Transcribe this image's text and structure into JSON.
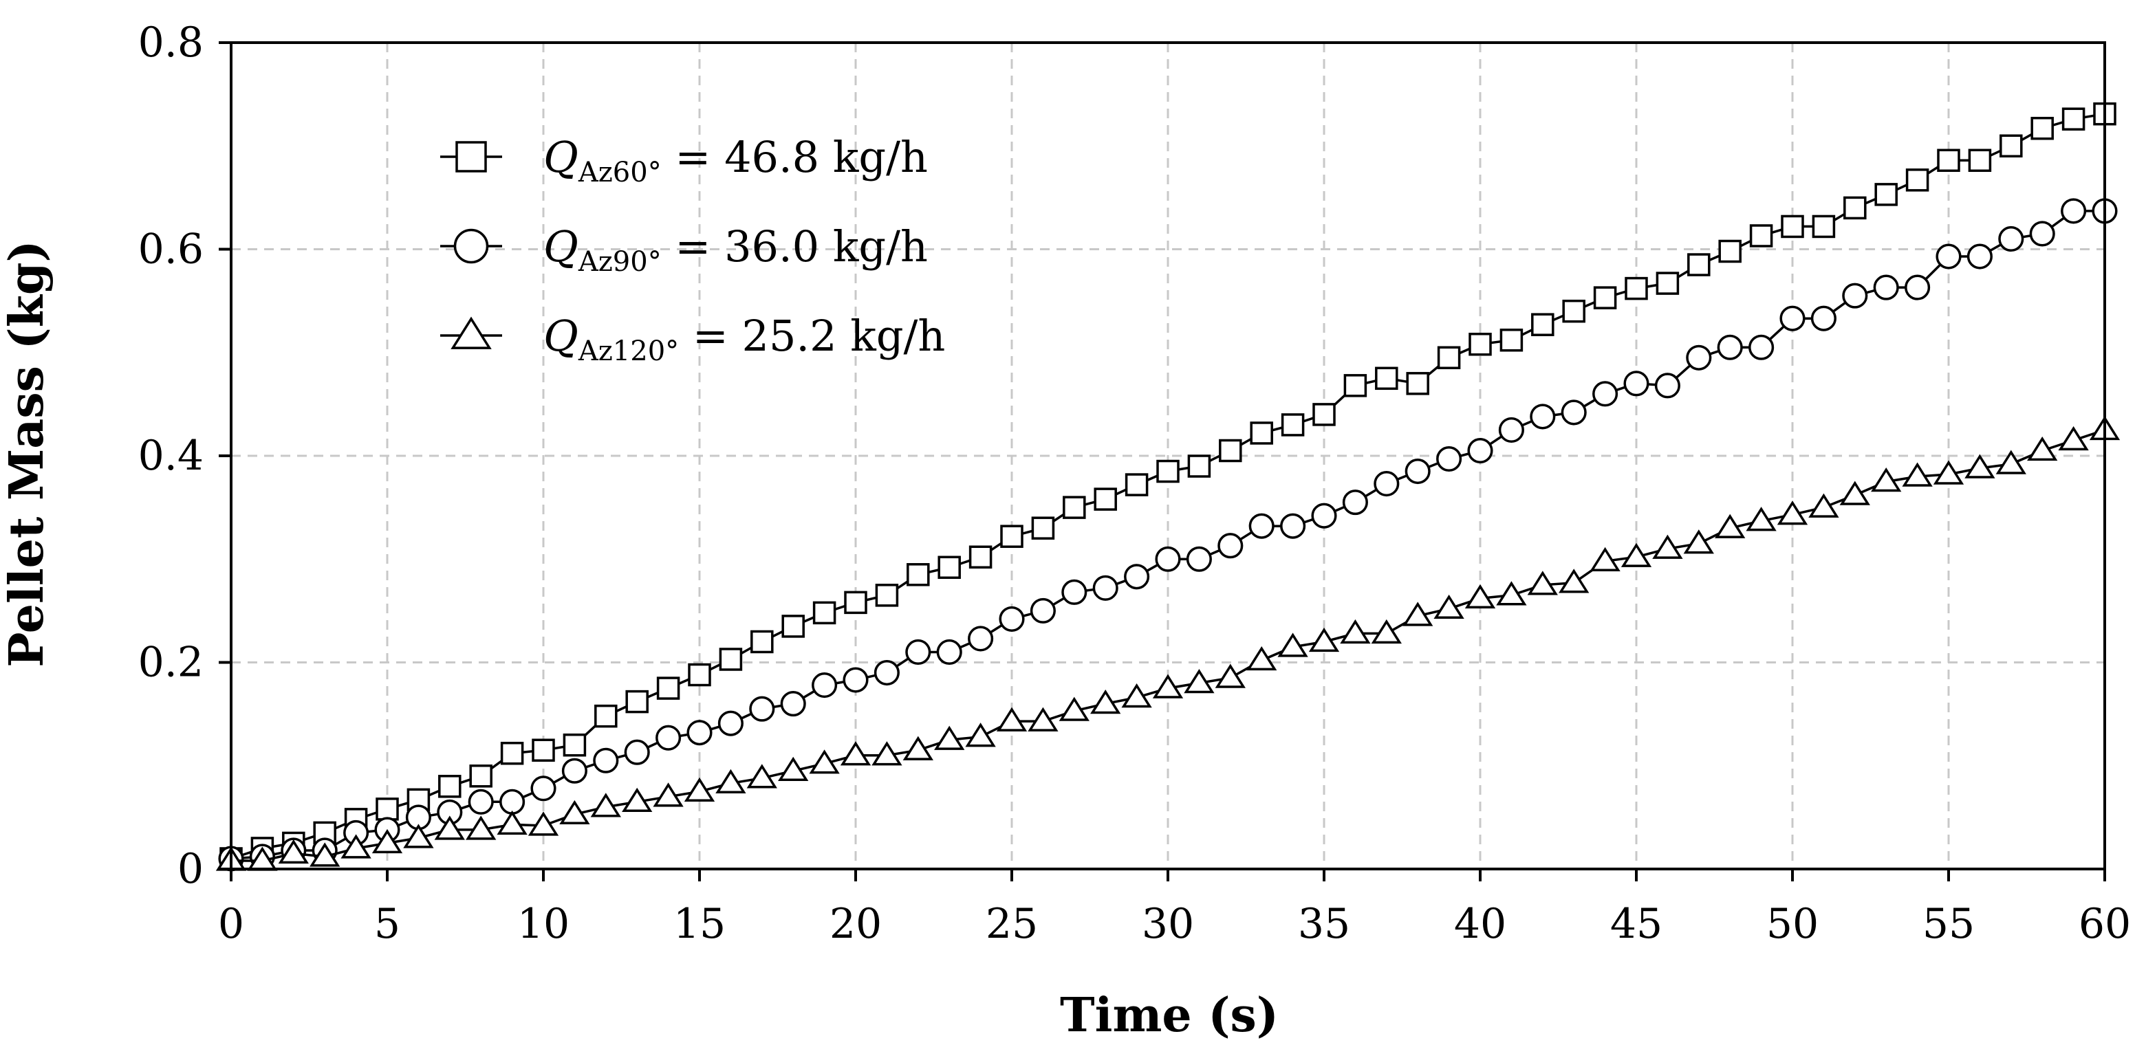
{
  "chart_data": {
    "type": "line",
    "title": "",
    "xlabel": "Time (s)",
    "ylabel": "Pellet Mass (kg)",
    "xlim": [
      0,
      60
    ],
    "ylim": [
      0,
      0.8
    ],
    "xticks": [
      "0",
      "5",
      "10",
      "15",
      "20",
      "25",
      "30",
      "35",
      "40",
      "45",
      "50",
      "55",
      "60"
    ],
    "yticks": [
      "0",
      "0.2",
      "0.4",
      "0.6",
      "0.8"
    ],
    "grid": true,
    "legend_position": "top-left",
    "series": [
      {
        "name": "Q_Az60° = 46.8 kg/h",
        "legend": {
          "q": "Q",
          "sub": "Az60°",
          "rest": " = 46.8 kg/h"
        },
        "marker": "square",
        "x": [
          0,
          1,
          2,
          3,
          4,
          5,
          6,
          7,
          8,
          9,
          10,
          11,
          12,
          13,
          14,
          15,
          16,
          17,
          18,
          19,
          20,
          21,
          22,
          23,
          24,
          25,
          26,
          27,
          28,
          29,
          30,
          31,
          32,
          33,
          34,
          35,
          36,
          37,
          38,
          39,
          40,
          41,
          42,
          43,
          44,
          45,
          46,
          47,
          48,
          49,
          50,
          51,
          52,
          53,
          54,
          55,
          56,
          57,
          58,
          59,
          60
        ],
        "values": [
          0.01,
          0.02,
          0.025,
          0.035,
          0.048,
          0.058,
          0.067,
          0.08,
          0.09,
          0.112,
          0.115,
          0.12,
          0.148,
          0.162,
          0.175,
          0.188,
          0.203,
          0.22,
          0.235,
          0.248,
          0.258,
          0.265,
          0.285,
          0.292,
          0.302,
          0.322,
          0.33,
          0.35,
          0.358,
          0.372,
          0.385,
          0.39,
          0.405,
          0.422,
          0.43,
          0.44,
          0.468,
          0.475,
          0.47,
          0.495,
          0.508,
          0.512,
          0.527,
          0.54,
          0.553,
          0.562,
          0.567,
          0.585,
          0.598,
          0.613,
          0.622,
          0.622,
          0.64,
          0.653,
          0.667,
          0.686,
          0.686,
          0.7,
          0.717,
          0.726,
          0.731
        ]
      },
      {
        "name": "Q_Az90° = 36.0 kg/h",
        "legend": {
          "q": "Q",
          "sub": "Az90°",
          "rest": " = 36.0 kg/h"
        },
        "marker": "circle",
        "x": [
          0,
          1,
          2,
          3,
          4,
          5,
          6,
          7,
          8,
          9,
          10,
          11,
          12,
          13,
          14,
          15,
          16,
          17,
          18,
          19,
          20,
          21,
          22,
          23,
          24,
          25,
          26,
          27,
          28,
          29,
          30,
          31,
          32,
          33,
          34,
          35,
          36,
          37,
          38,
          39,
          40,
          41,
          42,
          43,
          44,
          45,
          46,
          47,
          48,
          49,
          50,
          51,
          52,
          53,
          54,
          55,
          56,
          57,
          58,
          59,
          60
        ],
        "values": [
          0.01,
          0.012,
          0.018,
          0.018,
          0.035,
          0.038,
          0.05,
          0.055,
          0.065,
          0.065,
          0.078,
          0.095,
          0.105,
          0.113,
          0.127,
          0.132,
          0.141,
          0.155,
          0.16,
          0.178,
          0.183,
          0.19,
          0.21,
          0.21,
          0.223,
          0.242,
          0.25,
          0.268,
          0.272,
          0.283,
          0.3,
          0.3,
          0.313,
          0.332,
          0.332,
          0.342,
          0.355,
          0.373,
          0.385,
          0.397,
          0.405,
          0.425,
          0.438,
          0.442,
          0.46,
          0.47,
          0.468,
          0.495,
          0.505,
          0.505,
          0.533,
          0.533,
          0.555,
          0.563,
          0.563,
          0.593,
          0.593,
          0.61,
          0.615,
          0.637,
          0.637
        ]
      },
      {
        "name": "Q_Az120° = 25.2 kg/h",
        "legend": {
          "q": "Q",
          "sub": "Az120°",
          "rest": " = 25.2 kg/h"
        },
        "marker": "triangle",
        "x": [
          0,
          1,
          2,
          3,
          4,
          5,
          6,
          7,
          8,
          9,
          10,
          11,
          12,
          13,
          14,
          15,
          16,
          17,
          18,
          19,
          20,
          21,
          22,
          23,
          24,
          25,
          26,
          27,
          28,
          29,
          30,
          31,
          32,
          33,
          34,
          35,
          36,
          37,
          38,
          39,
          40,
          41,
          42,
          43,
          44,
          45,
          46,
          47,
          48,
          49,
          50,
          51,
          52,
          53,
          54,
          55,
          56,
          57,
          58,
          59,
          60
        ],
        "values": [
          0.008,
          0.008,
          0.015,
          0.012,
          0.02,
          0.025,
          0.03,
          0.038,
          0.038,
          0.043,
          0.042,
          0.053,
          0.06,
          0.065,
          0.07,
          0.075,
          0.083,
          0.088,
          0.095,
          0.102,
          0.11,
          0.11,
          0.115,
          0.125,
          0.128,
          0.143,
          0.143,
          0.153,
          0.16,
          0.166,
          0.175,
          0.18,
          0.185,
          0.202,
          0.215,
          0.22,
          0.228,
          0.228,
          0.245,
          0.252,
          0.262,
          0.265,
          0.275,
          0.277,
          0.298,
          0.302,
          0.31,
          0.315,
          0.33,
          0.337,
          0.343,
          0.35,
          0.362,
          0.375,
          0.38,
          0.382,
          0.388,
          0.392,
          0.405,
          0.415,
          0.425
        ]
      }
    ]
  }
}
